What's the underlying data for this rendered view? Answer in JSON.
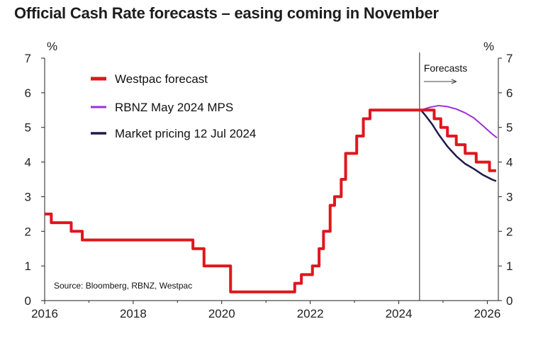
{
  "title": "Official Cash Rate forecasts – easing coming in November",
  "colors": {
    "westpac": "#e0161d",
    "rbnz": "#9b30d9",
    "market": "#1f1b4a"
  },
  "chart_data": {
    "type": "line",
    "title": "Official Cash Rate forecasts – easing coming in November",
    "ylabel_left": "%",
    "ylabel_right": "%",
    "xlim": [
      2016,
      2026.25
    ],
    "ylim": [
      0,
      7
    ],
    "x_ticks": [
      "2016",
      "2018",
      "2020",
      "2022",
      "2024",
      "2026"
    ],
    "y_ticks": [
      "0",
      "1",
      "2",
      "3",
      "4",
      "5",
      "6",
      "7"
    ],
    "grid": false,
    "legend_position": "top-left",
    "source": "Source: Bloomberg, RBNZ, Westpac",
    "forecast_start": 2024.47,
    "forecast_label": "Forecasts",
    "series": [
      {
        "name": "Westpac forecast",
        "style": "step",
        "points": [
          [
            2016.0,
            2.5
          ],
          [
            2016.15,
            2.25
          ],
          [
            2016.6,
            2.0
          ],
          [
            2016.85,
            1.75
          ],
          [
            2019.35,
            1.5
          ],
          [
            2019.6,
            1.0
          ],
          [
            2020.2,
            0.25
          ],
          [
            2021.65,
            0.5
          ],
          [
            2021.8,
            0.75
          ],
          [
            2022.05,
            1.0
          ],
          [
            2022.2,
            1.5
          ],
          [
            2022.3,
            2.0
          ],
          [
            2022.45,
            2.75
          ],
          [
            2022.55,
            3.0
          ],
          [
            2022.7,
            3.5
          ],
          [
            2022.8,
            4.25
          ],
          [
            2023.05,
            4.75
          ],
          [
            2023.2,
            5.25
          ],
          [
            2023.35,
            5.5
          ],
          [
            2024.8,
            5.25
          ],
          [
            2024.95,
            5.0
          ],
          [
            2025.1,
            4.75
          ],
          [
            2025.3,
            4.5
          ],
          [
            2025.5,
            4.25
          ],
          [
            2025.75,
            4.0
          ],
          [
            2026.05,
            3.75
          ],
          [
            2026.2,
            3.75
          ]
        ]
      },
      {
        "name": "RBNZ May 2024 MPS",
        "style": "line",
        "points": [
          [
            2024.5,
            5.5
          ],
          [
            2024.7,
            5.58
          ],
          [
            2024.9,
            5.63
          ],
          [
            2025.1,
            5.6
          ],
          [
            2025.3,
            5.53
          ],
          [
            2025.5,
            5.42
          ],
          [
            2025.7,
            5.27
          ],
          [
            2025.9,
            5.05
          ],
          [
            2026.1,
            4.82
          ],
          [
            2026.22,
            4.7
          ]
        ]
      },
      {
        "name": "Market pricing 12 Jul 2024",
        "style": "line",
        "points": [
          [
            2024.5,
            5.5
          ],
          [
            2024.6,
            5.35
          ],
          [
            2024.75,
            5.1
          ],
          [
            2024.9,
            4.8
          ],
          [
            2025.1,
            4.45
          ],
          [
            2025.3,
            4.17
          ],
          [
            2025.5,
            3.95
          ],
          [
            2025.7,
            3.8
          ],
          [
            2025.9,
            3.63
          ],
          [
            2026.1,
            3.5
          ],
          [
            2026.2,
            3.45
          ]
        ]
      }
    ]
  }
}
